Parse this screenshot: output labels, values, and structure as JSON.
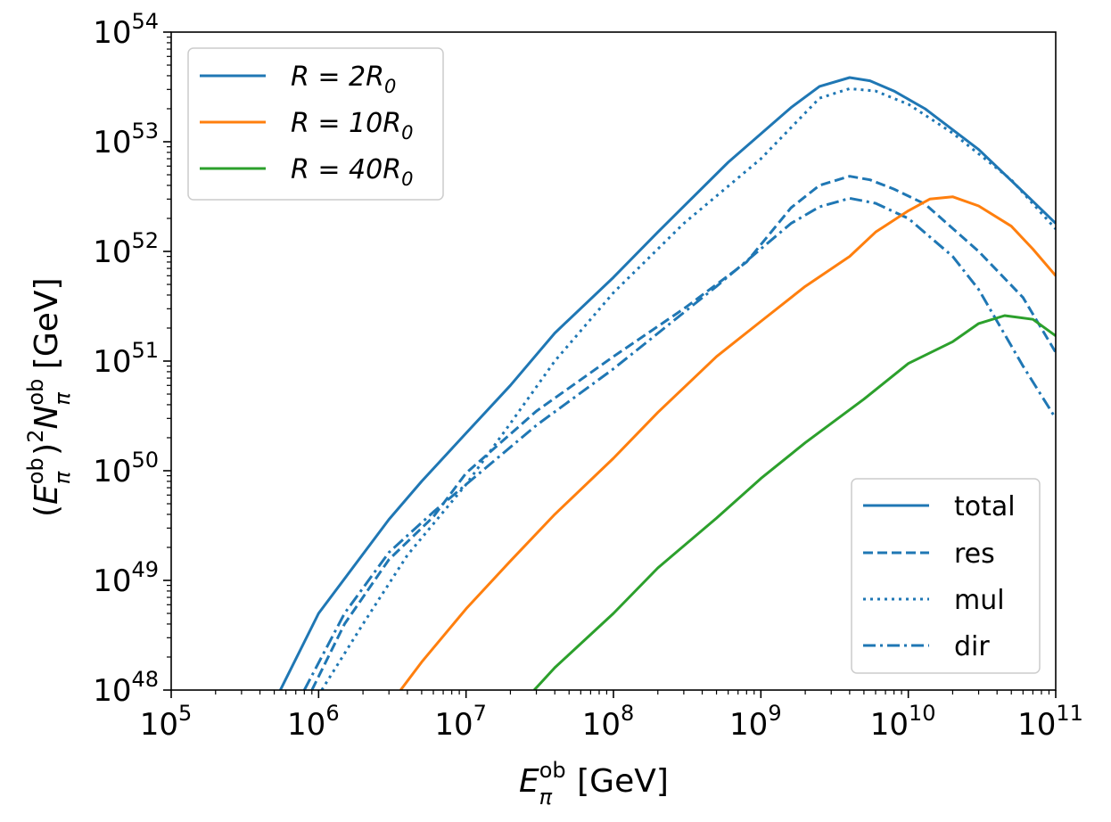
{
  "chart_data": {
    "type": "line",
    "scale": {
      "x": "log",
      "y": "log"
    },
    "xlabel": {
      "symbol": "E",
      "sub": "π",
      "sup": "ob",
      "unit": "[GeV]"
    },
    "ylabel": {
      "prefix": "(",
      "symbol": "E",
      "sub": "π",
      "sup": "ob",
      "mid": ")",
      "pow": "2",
      "symbol2": "N",
      "sub2": "π",
      "sup2": "ob",
      "unit": "[GeV]"
    },
    "xlim": [
      100000,
      100000000000
    ],
    "ylim": [
      1e+48,
      1e+54
    ],
    "x_ticks": [
      {
        "base": "10",
        "exp": "5",
        "value": 100000.0
      },
      {
        "base": "10",
        "exp": "6",
        "value": 1000000.0
      },
      {
        "base": "10",
        "exp": "7",
        "value": 10000000.0
      },
      {
        "base": "10",
        "exp": "8",
        "value": 100000000.0
      },
      {
        "base": "10",
        "exp": "9",
        "value": 1000000000.0
      },
      {
        "base": "10",
        "exp": "10",
        "value": 10000000000.0
      },
      {
        "base": "10",
        "exp": "11",
        "value": 100000000000.0
      }
    ],
    "y_ticks": [
      {
        "base": "10",
        "exp": "48",
        "value": 1e+48
      },
      {
        "base": "10",
        "exp": "49",
        "value": 1e+49
      },
      {
        "base": "10",
        "exp": "50",
        "value": 1e+50
      },
      {
        "base": "10",
        "exp": "51",
        "value": 1e+51
      },
      {
        "base": "10",
        "exp": "52",
        "value": 1e+52
      },
      {
        "base": "10",
        "exp": "53",
        "value": 1e+53
      },
      {
        "base": "10",
        "exp": "54",
        "value": 1e+54
      }
    ],
    "legend_radius": {
      "placement": "top-left",
      "entries": [
        {
          "label": "R = 2R",
          "sub": "0",
          "color": "#1f77b4"
        },
        {
          "label": "R = 10R",
          "sub": "0",
          "color": "#ff7f0e"
        },
        {
          "label": "R = 40R",
          "sub": "0",
          "color": "#2ca02c"
        }
      ]
    },
    "legend_component": {
      "placement": "bottom-right",
      "entries": [
        {
          "label": "total",
          "dash": "solid"
        },
        {
          "label": "res",
          "dash": "dashed"
        },
        {
          "label": "mul",
          "dash": "dotted"
        },
        {
          "label": "dir",
          "dash": "dashdot"
        }
      ]
    },
    "series": [
      {
        "name": "R=2R0 total",
        "color": "#1f77b4",
        "dash": "solid",
        "points": [
          [
            550000.0,
            1e+48
          ],
          [
            1000000.0,
            5e+48
          ],
          [
            3000000.0,
            3.6e+49
          ],
          [
            5000000.0,
            8e+49
          ],
          [
            10000000.0,
            2.2e+50
          ],
          [
            20000000.0,
            6e+50
          ],
          [
            40000000.0,
            1.8e+51
          ],
          [
            100000000.0,
            5.8e+51
          ],
          [
            200000000.0,
            1.5e+52
          ],
          [
            600000000.0,
            6.5e+52
          ],
          [
            1600000000.0,
            2.05e+53
          ],
          [
            2500000000.0,
            3.2e+53
          ],
          [
            4000000000.0,
            3.85e+53
          ],
          [
            5500000000.0,
            3.6e+53
          ],
          [
            8000000000.0,
            2.9e+53
          ],
          [
            13000000000.0,
            2e+53
          ],
          [
            30000000000.0,
            8.5e+52
          ],
          [
            60000000000.0,
            3.5e+52
          ],
          [
            100000000000.0,
            1.8e+52
          ]
        ]
      },
      {
        "name": "R=2R0 res",
        "color": "#1f77b4",
        "dash": "dashed",
        "points": [
          [
            900000.0,
            1e+48
          ],
          [
            1500000.0,
            4e+48
          ],
          [
            3000000.0,
            1.55e+49
          ],
          [
            6000000.0,
            3.8e+49
          ],
          [
            10000000.0,
            9.5e+49
          ],
          [
            30000000.0,
            3.5e+50
          ],
          [
            100000000.0,
            1.1e+51
          ],
          [
            300000000.0,
            3e+51
          ],
          [
            800000000.0,
            8e+51
          ],
          [
            1600000000.0,
            2.5e+52
          ],
          [
            2500000000.0,
            4e+52
          ],
          [
            4000000000.0,
            4.85e+52
          ],
          [
            5500000000.0,
            4.5e+52
          ],
          [
            8000000000.0,
            3.7e+52
          ],
          [
            13000000000.0,
            2.7e+52
          ],
          [
            30000000000.0,
            1e+52
          ],
          [
            60000000000.0,
            3.8e+51
          ],
          [
            100000000000.0,
            1.2e+51
          ]
        ]
      },
      {
        "name": "R=2R0 mul",
        "color": "#1f77b4",
        "dash": "dotted",
        "points": [
          [
            1050000.0,
            1e+48
          ],
          [
            2000000.0,
            4e+48
          ],
          [
            4000000.0,
            1.7e+49
          ],
          [
            10000000.0,
            7.5e+49
          ],
          [
            20000000.0,
            2.7e+50
          ],
          [
            40000000.0,
            1e+51
          ],
          [
            100000000.0,
            4.2e+51
          ],
          [
            300000000.0,
            1.8e+52
          ],
          [
            1000000000.0,
            7e+52
          ],
          [
            2500000000.0,
            2.5e+53
          ],
          [
            4000000000.0,
            3.05e+53
          ],
          [
            6000000000.0,
            2.9e+53
          ],
          [
            10000000000.0,
            2.2e+53
          ],
          [
            20000000000.0,
            1.2e+53
          ],
          [
            50000000000.0,
            4.5e+52
          ],
          [
            100000000000.0,
            1.6e+52
          ]
        ]
      },
      {
        "name": "R=2R0 dir",
        "color": "#1f77b4",
        "dash": "dashdot",
        "points": [
          [
            800000.0,
            1e+48
          ],
          [
            1500000.0,
            5e+48
          ],
          [
            3000000.0,
            1.8e+49
          ],
          [
            6000000.0,
            4.2e+49
          ],
          [
            10000000.0,
            7.5e+49
          ],
          [
            30000000.0,
            2.6e+50
          ],
          [
            100000000.0,
            8.5e+50
          ],
          [
            500000000.0,
            4.8e+51
          ],
          [
            1600000000.0,
            1.8e+52
          ],
          [
            2500000000.0,
            2.55e+52
          ],
          [
            4000000000.0,
            3.05e+52
          ],
          [
            6000000000.0,
            2.75e+52
          ],
          [
            10000000000.0,
            2e+52
          ],
          [
            20000000000.0,
            9e+51
          ],
          [
            30000000000.0,
            4.5e+51
          ],
          [
            60000000000.0,
            9e+50
          ],
          [
            100000000000.0,
            3e+50
          ]
        ]
      },
      {
        "name": "R=10R0 total",
        "color": "#ff7f0e",
        "dash": "solid",
        "points": [
          [
            3600000.0,
            1e+48
          ],
          [
            5000000.0,
            1.8e+48
          ],
          [
            10000000.0,
            5.5e+48
          ],
          [
            20000000.0,
            1.5e+49
          ],
          [
            40000000.0,
            4e+49
          ],
          [
            100000000.0,
            1.3e+50
          ],
          [
            200000000.0,
            3.4e+50
          ],
          [
            500000000.0,
            1.1e+51
          ],
          [
            1000000000.0,
            2.3e+51
          ],
          [
            2000000000.0,
            4.8e+51
          ],
          [
            4000000000.0,
            9e+51
          ],
          [
            6000000000.0,
            1.5e+52
          ],
          [
            10000000000.0,
            2.35e+52
          ],
          [
            14000000000.0,
            3e+52
          ],
          [
            20000000000.0,
            3.15e+52
          ],
          [
            30000000000.0,
            2.6e+52
          ],
          [
            50000000000.0,
            1.7e+52
          ],
          [
            70000000000.0,
            1.05e+52
          ],
          [
            100000000000.0,
            6e+51
          ]
        ]
      },
      {
        "name": "R=40R0 total",
        "color": "#2ca02c",
        "dash": "solid",
        "points": [
          [
            29000000.0,
            1e+48
          ],
          [
            40000000.0,
            1.6e+48
          ],
          [
            100000000.0,
            5e+48
          ],
          [
            200000000.0,
            1.3e+49
          ],
          [
            500000000.0,
            3.7e+49
          ],
          [
            1000000000.0,
            8.5e+49
          ],
          [
            2000000000.0,
            1.8e+50
          ],
          [
            5000000000.0,
            4.5e+50
          ],
          [
            10000000000.0,
            9.5e+50
          ],
          [
            20000000000.0,
            1.5e+51
          ],
          [
            30000000000.0,
            2.2e+51
          ],
          [
            45000000000.0,
            2.6e+51
          ],
          [
            70000000000.0,
            2.4e+51
          ],
          [
            100000000000.0,
            1.7e+51
          ]
        ]
      }
    ]
  }
}
